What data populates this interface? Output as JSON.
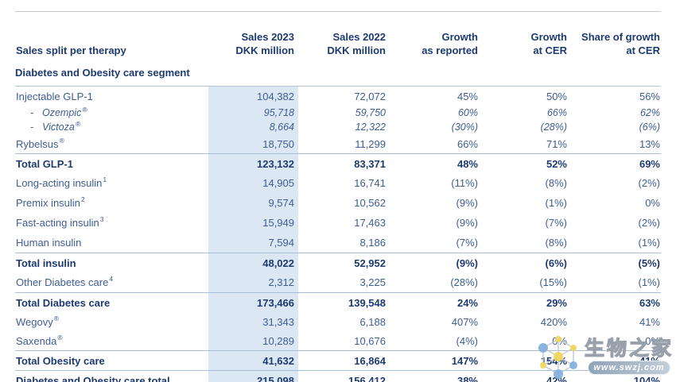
{
  "header": {
    "left_title": "Sales split per therapy",
    "segment_title": "Diabetes and Obesity care segment",
    "columns": [
      {
        "line1": "Sales 2023",
        "line2": "DKK million"
      },
      {
        "line1": "Sales 2022",
        "line2": "DKK million"
      },
      {
        "line1": "Growth",
        "line2": "as reported"
      },
      {
        "line1": "Growth",
        "line2": "at CER"
      },
      {
        "line1": "Share of growth",
        "line2": "at CER"
      }
    ]
  },
  "table": {
    "column_keys": [
      "sales-2023",
      "sales-2022",
      "growth-as-reported",
      "growth-at-cer",
      "share-of-growth-at-cer"
    ],
    "rows": [
      {
        "label": "Injectable GLP-1",
        "sup": "",
        "kind": "item",
        "border_top": false,
        "values": [
          "104,382",
          "72,072",
          "45%",
          "50%",
          "56%"
        ]
      },
      {
        "label": "Ozempic",
        "sup": "®",
        "kind": "sub",
        "border_top": false,
        "values": [
          "95,718",
          "59,750",
          "60%",
          "66%",
          "62%"
        ]
      },
      {
        "label": "Victoza",
        "sup": "®",
        "kind": "sub",
        "border_top": false,
        "values": [
          "8,664",
          "12,322",
          "(30%)",
          "(28%)",
          "(6%)"
        ]
      },
      {
        "label": "Rybelsus",
        "sup": "®",
        "kind": "item",
        "border_top": false,
        "values": [
          "18,750",
          "11,299",
          "66%",
          "71%",
          "13%"
        ]
      },
      {
        "label": "Total GLP-1",
        "sup": "",
        "kind": "total",
        "border_top": true,
        "values": [
          "123,132",
          "83,371",
          "48%",
          "52%",
          "69%"
        ]
      },
      {
        "label": "Long-acting insulin",
        "sup": "1",
        "kind": "item spaced",
        "border_top": false,
        "values": [
          "14,905",
          "16,741",
          "(11%)",
          "(8%)",
          "(2%)"
        ]
      },
      {
        "label": "Premix insulin",
        "sup": "2",
        "kind": "item spaced",
        "border_top": false,
        "values": [
          "9,574",
          "10,562",
          "(9%)",
          "(1%)",
          "0%"
        ]
      },
      {
        "label": "Fast-acting insulin",
        "sup": "3",
        "kind": "item spaced",
        "border_top": false,
        "values": [
          "15,949",
          "17,463",
          "(9%)",
          "(7%)",
          "(2%)"
        ]
      },
      {
        "label": "Human insulin",
        "sup": "",
        "kind": "item spaced",
        "border_top": false,
        "values": [
          "7,594",
          "8,186",
          "(7%)",
          "(8%)",
          "(1%)"
        ]
      },
      {
        "label": "Total insulin",
        "sup": "",
        "kind": "total",
        "border_top": true,
        "values": [
          "48,022",
          "52,952",
          "(9%)",
          "(6%)",
          "(5%)"
        ]
      },
      {
        "label": "Other Diabetes care",
        "sup": "4",
        "kind": "item spaced",
        "border_top": false,
        "values": [
          "2,312",
          "3,225",
          "(28%)",
          "(15%)",
          "(1%)"
        ]
      },
      {
        "label": "Total Diabetes care",
        "sup": "",
        "kind": "total",
        "border_top": true,
        "values": [
          "173,466",
          "139,548",
          "24%",
          "29%",
          "63%"
        ]
      },
      {
        "label": "Wegovy",
        "sup": "®",
        "kind": "item",
        "border_top": false,
        "values": [
          "31,343",
          "6,188",
          "407%",
          "420%",
          "41%"
        ]
      },
      {
        "label": "Saxenda",
        "sup": "®",
        "kind": "item",
        "border_top": false,
        "values": [
          "10,289",
          "10,676",
          "(4%)",
          "0%",
          "0%"
        ]
      },
      {
        "label": "Total Obesity care",
        "sup": "",
        "kind": "total",
        "border_top": true,
        "values": [
          "41,632",
          "16,864",
          "147%",
          "154%",
          "41%"
        ]
      },
      {
        "label": "Diabetes and Obesity care total",
        "sup": "",
        "kind": "total",
        "border_top": true,
        "values": [
          "215,098",
          "156,412",
          "38%",
          "42%",
          "104%"
        ]
      }
    ]
  },
  "watermark": {
    "site_name": "生物之家",
    "url": "www.swzj.com"
  },
  "colors": {
    "text_regular": "#3e5c93",
    "text_bold_navy": "#1e3a70",
    "column_highlight": "#dbe8f4",
    "rule_blue": "#a9bdd6",
    "rule_gray": "#c9c9d1",
    "watermark_yellow": "#f1d75e",
    "watermark_blue": "#85b1dd"
  }
}
